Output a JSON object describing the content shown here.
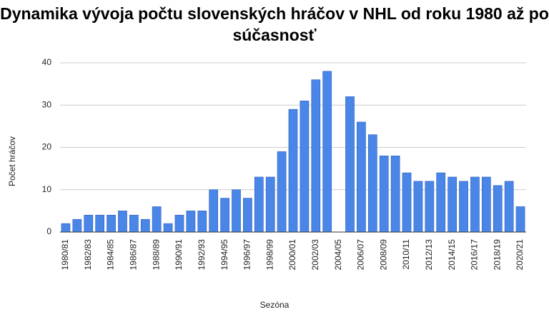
{
  "chart_data": {
    "type": "bar",
    "title": "Dynamika vývoja počtu slovenských hráčov v NHL od roku 1980 až po súčasnosť",
    "x_label": "Sezóna",
    "y_label": "Počet hráčov",
    "categories": [
      "1980/81",
      null,
      "1982/83",
      null,
      "1984/85",
      null,
      "1986/87",
      null,
      "1988/89",
      null,
      "1990/91",
      null,
      "1992/93",
      null,
      "1994/95",
      null,
      "1996/97",
      null,
      "1998/99",
      null,
      "2000/01",
      null,
      "2002/03",
      null,
      "2004/05",
      null,
      "2006/07",
      null,
      "2008/09",
      null,
      "2010/11",
      null,
      "2012/13",
      null,
      "2014/15",
      null,
      "2016/17",
      null,
      "2018/19",
      null,
      "2020/21"
    ],
    "values": [
      2,
      3,
      4,
      4,
      4,
      5,
      4,
      3,
      6,
      2,
      4,
      5,
      5,
      10,
      8,
      10,
      8,
      13,
      13,
      19,
      29,
      31,
      36,
      38,
      0,
      32,
      26,
      23,
      18,
      18,
      14,
      12,
      12,
      14,
      13,
      12,
      13,
      13,
      11,
      12,
      6
    ],
    "color": "#4a86e8",
    "ylim": [
      0,
      40
    ],
    "yticks": [
      0,
      10,
      20,
      30,
      40
    ],
    "grid": true
  }
}
